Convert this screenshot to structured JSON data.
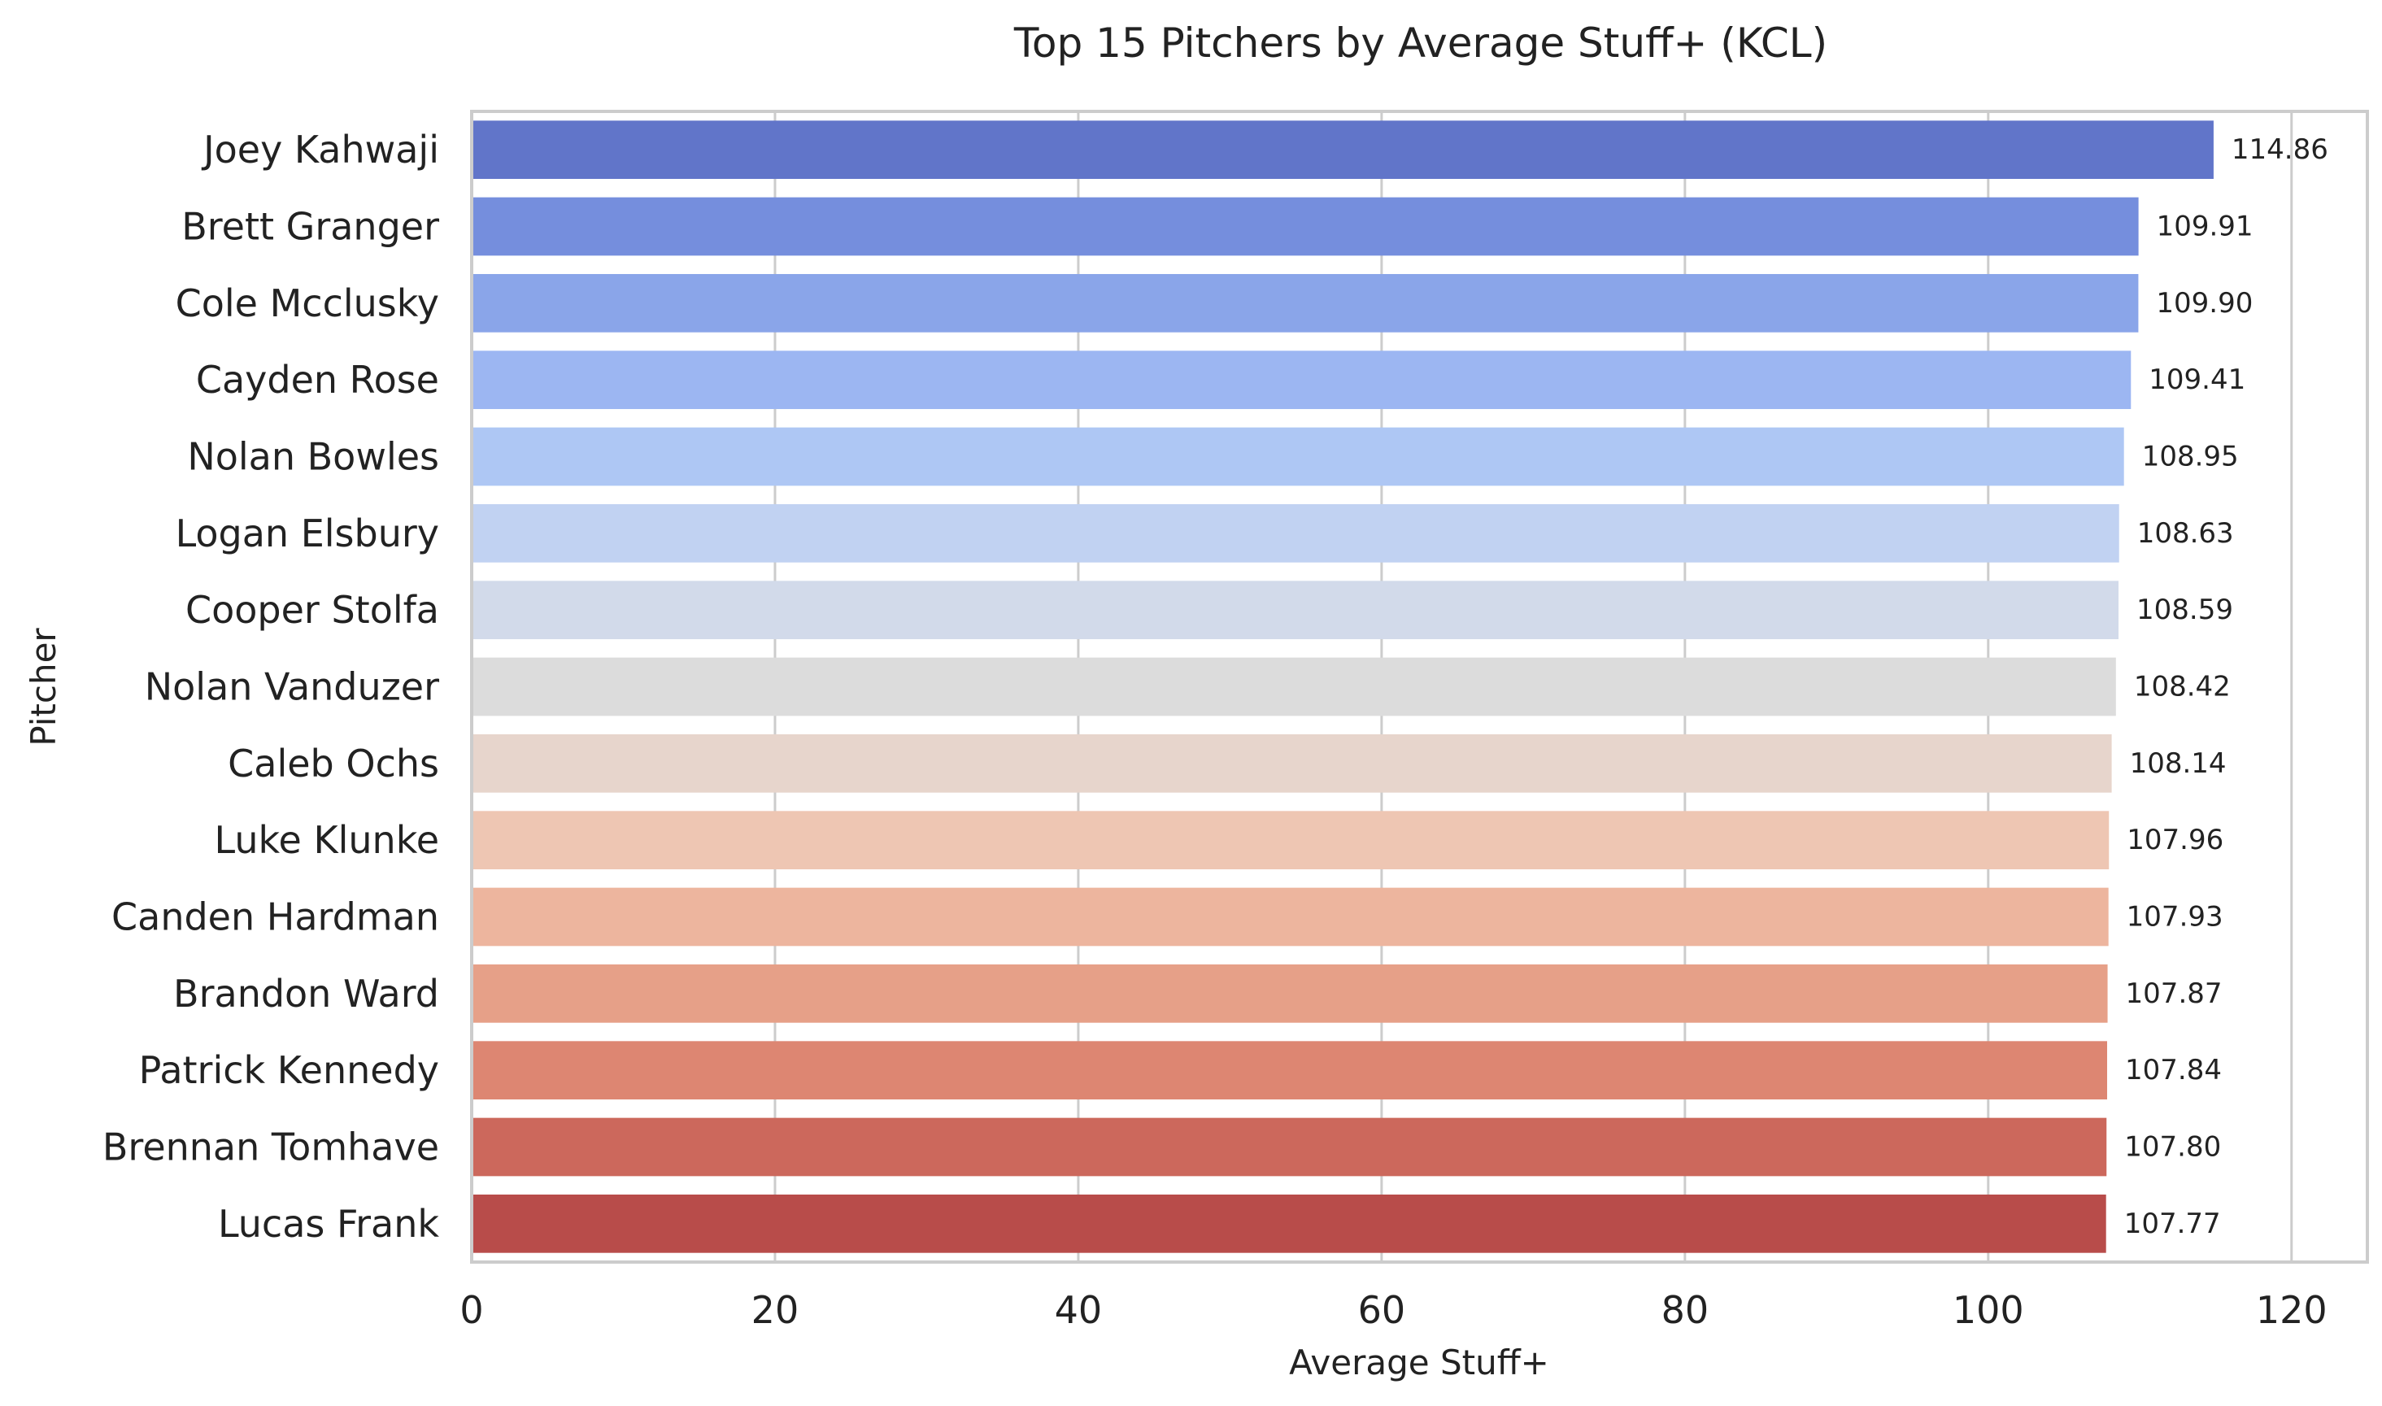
{
  "chart_data": {
    "type": "bar",
    "orientation": "horizontal",
    "title": "Top 15 Pitchers by Average Stuff+ (KCL)",
    "xlabel": "Average Stuff+",
    "ylabel": "Pitcher",
    "xlim": [
      0,
      125
    ],
    "xticks": [
      0,
      20,
      40,
      60,
      80,
      100,
      120
    ],
    "grid": "vertical",
    "categories": [
      "Joey Kahwaji",
      "Brett Granger",
      "Cole Mcclusky",
      "Cayden Rose",
      "Nolan Bowles",
      "Logan Elsbury",
      "Cooper Stolfa",
      "Nolan Vanduzer",
      "Caleb Ochs",
      "Luke Klunke",
      "Canden Hardman",
      "Brandon Ward",
      "Patrick Kennedy",
      "Brennan Tomhave",
      "Lucas Frank"
    ],
    "values": [
      114.86,
      109.91,
      109.9,
      109.41,
      108.95,
      108.63,
      108.59,
      108.42,
      108.14,
      107.96,
      107.93,
      107.87,
      107.84,
      107.8,
      107.77
    ],
    "value_labels": [
      "114.86",
      "109.91",
      "109.90",
      "109.41",
      "108.95",
      "108.63",
      "108.59",
      "108.42",
      "108.14",
      "107.96",
      "107.93",
      "107.87",
      "107.84",
      "107.80",
      "107.77"
    ],
    "colors": [
      "#6175c9",
      "#758edd",
      "#8aa5e9",
      "#9cb6f2",
      "#aec7f4",
      "#c1d2f2",
      "#d2daea",
      "#dcdcdc",
      "#e7d5cc",
      "#eec6b3",
      "#edb59e",
      "#e6a088",
      "#dd8672",
      "#cc685c",
      "#b84c4a"
    ]
  }
}
